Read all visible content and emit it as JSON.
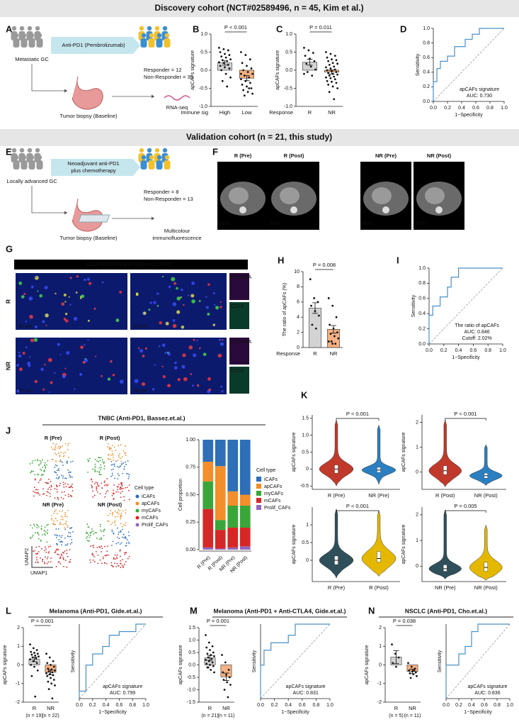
{
  "headers": [
    "Discovery cohort (NCT#02589496, n = 45, Kim et al.)",
    "Validation cohort (n = 21, this study)"
  ],
  "panels": [
    "A",
    "B",
    "C",
    "D",
    "E",
    "F",
    "G",
    "H",
    "I",
    "J",
    "K",
    "L",
    "M",
    "N"
  ],
  "schema_a": {
    "treatment": "Anti-PD1 (Pembrolizumab)",
    "patients": "Metastatic GC",
    "responder": "Responder = 12",
    "non_responder": "Non-Responder = 33",
    "biopsy": "Tumor biopsy (Baseline)",
    "assay": "RNA-seq"
  },
  "schema_e": {
    "treatment": [
      "Neoadjuvant anti-PD1",
      "plus chemotherapy"
    ],
    "patients": "Locally advanced GC",
    "responder": "Responder = 8",
    "non_responder": "Non-Responder = 13",
    "biopsy": "Tumor biopsy (Baseline)",
    "assay": [
      "Multicolour",
      "immunofluorescence"
    ]
  },
  "ct_images": {
    "labels": [
      "R (Pre)",
      "R (Post)",
      "NR (Pre)",
      "NR (Post)"
    ],
    "scale": "5cm"
  },
  "if_images": {
    "legend": [
      "apCAFs:",
      "PDGFRA",
      "CD74",
      "Nucleus:",
      "DAPI"
    ],
    "rows": [
      "R",
      "NR"
    ],
    "scale": "50 μm",
    "channels": [
      "PDGFRA",
      "CD74"
    ]
  },
  "tnbc": {
    "title": "TNBC (Anti-PD1,  Bassez.et.al.)",
    "umap_labels": [
      "R (Pre)",
      "R (Post)",
      "NR (Pre)",
      "NR (Post)"
    ],
    "umap_axes": [
      "UMAP2",
      "UMAP1"
    ]
  },
  "chart_data": [
    {
      "type": "bar",
      "ylabel": "apCAFs signature",
      "xlabel": "Immune sig",
      "categories": [
        "High",
        "Low"
      ],
      "values": [
        0.2,
        -0.22
      ],
      "errors": [
        0.06,
        0.07
      ],
      "colors": [
        "#d3d3d3",
        "#f4b183"
      ],
      "points": [
        [
          0.62,
          0.58,
          0.55,
          0.5,
          0.45,
          0.42,
          0.38,
          0.35,
          0.3,
          0.28,
          0.25,
          0.22,
          0.2,
          0.15,
          0.12,
          0.08,
          0.05,
          0.0,
          -0.1,
          -0.2,
          -0.3,
          -0.45
        ],
        [
          0.5,
          0.42,
          0.3,
          0.2,
          0.12,
          0.05,
          0.0,
          -0.05,
          -0.1,
          -0.15,
          -0.2,
          -0.25,
          -0.3,
          -0.35,
          -0.4,
          -0.45,
          -0.5,
          -0.55,
          -0.6,
          -0.65,
          -0.7,
          -0.5,
          -0.1
        ]
      ],
      "ylim": [
        -1,
        1
      ],
      "yticks": [
        {
          "value": -1,
          "label": "-1.0"
        },
        {
          "value": -0.5,
          "label": "-0.5"
        },
        {
          "value": 0,
          "label": "0.0"
        },
        {
          "value": 0.5,
          "label": "0.5"
        },
        {
          "value": 1,
          "label": "1.0"
        }
      ],
      "annotation": "P < 0.001"
    },
    {
      "type": "bar",
      "ylabel": "apCAFs signature",
      "xlabel": "Response",
      "categories": [
        "R",
        "NR"
      ],
      "values": [
        0.22,
        -0.05
      ],
      "errors": [
        0.08,
        0.06
      ],
      "colors": [
        "#d3d3d3",
        "#f4b183"
      ],
      "points": [
        [
          0.62,
          0.55,
          0.48,
          0.4,
          0.32,
          0.25,
          0.18,
          0.1,
          0.02,
          -0.05,
          -0.15,
          -0.1
        ],
        [
          0.5,
          0.45,
          0.4,
          0.35,
          0.3,
          0.28,
          0.25,
          0.2,
          0.18,
          0.15,
          0.1,
          0.08,
          0.05,
          0.02,
          0.0,
          -0.02,
          -0.05,
          -0.08,
          -0.1,
          -0.12,
          -0.15,
          -0.18,
          -0.2,
          -0.22,
          -0.25,
          -0.3,
          -0.32,
          -0.35,
          -0.4,
          -0.45,
          -0.5,
          -0.6,
          -0.8
        ]
      ],
      "ylim": [
        -1,
        1
      ],
      "yticks": [
        {
          "value": -1,
          "label": "-1.0"
        },
        {
          "value": -0.5,
          "label": "-0.5"
        },
        {
          "value": 0,
          "label": "0.0"
        },
        {
          "value": 0.5,
          "label": "0.5"
        },
        {
          "value": 1,
          "label": "1.0"
        }
      ],
      "annotation": "P = 0.011"
    },
    {
      "type": "roc",
      "xlabel": "1−Specificity",
      "ylabel": "Sensitivity",
      "color": "#4a90c8",
      "x": [
        0,
        0,
        0.05,
        0.05,
        0.1,
        0.1,
        0.2,
        0.2,
        0.3,
        0.3,
        0.45,
        0.45,
        0.55,
        0.55,
        0.65,
        0.65,
        1
      ],
      "y": [
        0,
        0.27,
        0.27,
        0.45,
        0.45,
        0.55,
        0.55,
        0.62,
        0.62,
        0.75,
        0.75,
        0.85,
        0.85,
        0.92,
        0.92,
        1,
        1
      ],
      "xlim": [
        0,
        1
      ],
      "ylim": [
        0,
        1
      ],
      "xticks": [
        {
          "value": 0,
          "label": "0.0"
        },
        0.2,
        0.4,
        0.6,
        0.8,
        {
          "value": 1,
          "label": "1.0"
        }
      ],
      "yticks": [
        {
          "value": 0,
          "label": "0.0"
        },
        0.2,
        0.4,
        0.6,
        0.8,
        {
          "value": 1,
          "label": "1.0"
        }
      ],
      "annotation": [
        "apCAFs signature",
        "AUC: 0.730"
      ]
    },
    {
      "type": "bar",
      "ylabel": "The ratio of apCAFs (%)",
      "xlabel": "Response",
      "categories": [
        "R",
        "NR"
      ],
      "values": [
        5.2,
        2.4
      ],
      "errors": [
        0.7,
        0.5
      ],
      "colors": [
        "#d3d3d3",
        "#f4b183"
      ],
      "points": [
        [
          9.0,
          6.5,
          6.0,
          5.5,
          4.8,
          4.2,
          3.0,
          2.5
        ],
        [
          6.5,
          5.5,
          4.0,
          3.0,
          2.5,
          2.0,
          1.8,
          1.5,
          1.2,
          0.8,
          0.5,
          0.8,
          0.5
        ]
      ],
      "ylim": [
        0,
        10
      ],
      "yticks": [
        0,
        2,
        4,
        6,
        8,
        10
      ],
      "annotation": "P = 0.008"
    },
    {
      "type": "roc",
      "xlabel": "1−Specificity",
      "ylabel": "Sensitivity",
      "color": "#4a90c8",
      "x": [
        0,
        0,
        0.05,
        0.05,
        0.15,
        0.15,
        0.25,
        0.25,
        0.3,
        0.3,
        0.4,
        0.4,
        1
      ],
      "y": [
        0,
        0.38,
        0.38,
        0.5,
        0.5,
        0.62,
        0.62,
        0.75,
        0.75,
        0.88,
        0.88,
        1,
        1
      ],
      "xlim": [
        0,
        1
      ],
      "ylim": [
        0,
        1
      ],
      "xticks": [
        {
          "value": 0,
          "label": "0.0"
        },
        0.2,
        0.4,
        0.6,
        0.8,
        {
          "value": 1,
          "label": "1.0"
        }
      ],
      "yticks": [
        {
          "value": 0,
          "label": "0.0"
        },
        0.2,
        0.4,
        0.6,
        0.8,
        {
          "value": 1,
          "label": "1.0"
        }
      ],
      "annotation": [
        "The ratio of apCAFs",
        "AUC: 0.846",
        "Cutoff: 2.02%"
      ]
    },
    {
      "type": "stacked_bar",
      "ylabel": "Cell proportion",
      "legend_title": "Cell type",
      "categories": [
        "R (Pre)",
        "R (Post)",
        "NR (Pre)",
        "NR (Post)"
      ],
      "series": [
        {
          "name": "iCAFs",
          "color": "#2e6fb7",
          "values": [
            0.2,
            0.24,
            0.47,
            0.5
          ]
        },
        {
          "name": "apCAFs",
          "color": "#f28e2b",
          "values": [
            0.18,
            0.49,
            0.13,
            0.1
          ]
        },
        {
          "name": "myCAFs",
          "color": "#3aa63a",
          "values": [
            0.25,
            0.09,
            0.2,
            0.2
          ]
        },
        {
          "name": "mCAFs",
          "color": "#d62728",
          "values": [
            0.35,
            0.17,
            0.18,
            0.17
          ]
        },
        {
          "name": "Prolif_CAFs",
          "color": "#9467bd",
          "values": [
            0.02,
            0.01,
            0.02,
            0.03
          ]
        }
      ],
      "ylim": [
        0,
        1
      ],
      "yticks": [
        {
          "value": 0,
          "label": "0.00"
        },
        {
          "value": 0.25,
          "label": "0.25"
        },
        {
          "value": 0.5,
          "label": "0.50"
        },
        {
          "value": 0.75,
          "label": "0.75"
        },
        {
          "value": 1,
          "label": "1.00"
        }
      ]
    },
    {
      "type": "violin",
      "ylabel": "apCAFs signature",
      "groups": [
        {
          "name": "R (Pre)",
          "color": "#c0392b",
          "min": -0.5,
          "q1": -0.12,
          "median": 0.0,
          "q3": 0.12,
          "max": 1.45
        },
        {
          "name": "NR (Pre)",
          "color": "#2a7fc1",
          "min": -0.45,
          "q1": -0.1,
          "median": -0.03,
          "q3": 0.05,
          "max": 1.3
        }
      ],
      "ylim": [
        -0.6,
        1.6
      ],
      "yticks": [
        {
          "value": -0.5,
          "label": "-0.5"
        },
        0,
        0.5,
        {
          "value": 1,
          "label": "1.0"
        },
        {
          "value": 1.5,
          "label": "1.5"
        }
      ],
      "annotation": "P < 0.001"
    },
    {
      "type": "violin",
      "ylabel": "apCAFs signature",
      "groups": [
        {
          "name": "R (Post)",
          "color": "#c0392b",
          "min": -0.6,
          "q1": -0.1,
          "median": 0.05,
          "q3": 0.25,
          "max": 2.1
        },
        {
          "name": "NR (Post)",
          "color": "#2a7fc1",
          "min": -0.55,
          "q1": -0.25,
          "median": -0.15,
          "q3": -0.05,
          "max": 1.1
        }
      ],
      "ylim": [
        -0.7,
        2.3
      ],
      "yticks": [
        0,
        1,
        2
      ],
      "annotation": "P < 0.001"
    },
    {
      "type": "violin",
      "ylabel": "apCAFs signature",
      "groups": [
        {
          "name": "R (Pre)",
          "color": "#2f4f5a",
          "min": -0.5,
          "q1": -0.12,
          "median": 0.0,
          "q3": 0.12,
          "max": 1.45
        },
        {
          "name": "R (Post)",
          "color": "#e5b800",
          "min": -0.45,
          "q1": -0.05,
          "median": 0.05,
          "q3": 0.25,
          "max": 1.4
        }
      ],
      "ylim": [
        -0.6,
        1.5
      ],
      "yticks": [
        0,
        0.5,
        1
      ],
      "annotation": "P < 0.001"
    },
    {
      "type": "violin",
      "ylabel": "apCAFs signature",
      "groups": [
        {
          "name": "NR (Pre)",
          "color": "#2f4f5a",
          "min": -0.5,
          "q1": -0.2,
          "median": -0.1,
          "q3": 0.05,
          "max": 2.2
        },
        {
          "name": "NR (Post)",
          "color": "#e5b800",
          "min": -0.55,
          "q1": -0.2,
          "median": -0.05,
          "q3": 0.15,
          "max": 1.6
        }
      ],
      "ylim": [
        -0.6,
        2.3
      ],
      "yticks": [
        0,
        1,
        2
      ],
      "annotation": "P = 0.005"
    },
    {
      "type": "bar",
      "title": "Melanoma (Anti-PD1, Gide.et.al.)",
      "ylabel": "apCAFs signature",
      "categories": [
        "R",
        "NR"
      ],
      "category_notes": [
        "(n = 19)",
        "(n = 22)"
      ],
      "values": [
        0.3,
        -0.4
      ],
      "errors": [
        0.12,
        0.13
      ],
      "colors": [
        "#d3d3d3",
        "#f4b183"
      ],
      "points": [
        [
          1.1,
          0.9,
          0.8,
          0.7,
          0.65,
          0.6,
          0.55,
          0.5,
          0.45,
          0.4,
          0.35,
          0.3,
          0.2,
          0.1,
          0.0,
          -0.1,
          -0.3,
          -0.6,
          -1.7
        ],
        [
          0.6,
          0.4,
          0.2,
          0.1,
          0.0,
          -0.1,
          -0.2,
          -0.25,
          -0.3,
          -0.35,
          -0.4,
          -0.45,
          -0.5,
          -0.55,
          -0.6,
          -0.7,
          -0.8,
          -0.9,
          -1.0,
          -1.1,
          -1.3,
          -1.8
        ]
      ],
      "ylim": [
        -2,
        2
      ],
      "yticks": [
        -2,
        -1,
        0,
        1,
        2
      ],
      "annotation": "P = 0.001"
    },
    {
      "type": "roc",
      "xlabel": "1−Specificity",
      "ylabel": "Sensitivity",
      "color": "#4a90c8",
      "x": [
        0,
        0,
        0.1,
        0.1,
        0.2,
        0.2,
        0.35,
        0.35,
        0.45,
        0.45,
        0.6,
        0.6,
        0.85,
        0.85,
        1
      ],
      "y": [
        0,
        0.1,
        0.1,
        0.45,
        0.45,
        0.6,
        0.6,
        0.7,
        0.7,
        0.85,
        0.85,
        0.9,
        0.9,
        1,
        1
      ],
      "xlim": [
        0,
        1
      ],
      "ylim": [
        0,
        1
      ],
      "xticks": [
        {
          "value": 0,
          "label": "0.0"
        },
        0.2,
        0.4,
        0.6,
        0.8,
        {
          "value": 1,
          "label": "1.0"
        }
      ],
      "annotation": [
        "apCAFs signature",
        "AUC: 0.799"
      ]
    },
    {
      "type": "bar",
      "title": "Melanoma (Anti-PD1 + Anti-CTLA4, Gide.et.al.)",
      "ylabel": "apCAFs signature",
      "categories": [
        "R",
        "NR"
      ],
      "category_notes": [
        "(n = 21)",
        "(n = 11)"
      ],
      "values": [
        0.28,
        -0.48
      ],
      "errors": [
        0.1,
        0.15
      ],
      "colors": [
        "#d3d3d3",
        "#f4b183"
      ],
      "points": [
        [
          1.2,
          0.9,
          0.75,
          0.7,
          0.6,
          0.5,
          0.45,
          0.4,
          0.35,
          0.3,
          0.25,
          0.2,
          0.15,
          0.1,
          0.05,
          0.0,
          -0.05,
          -0.1,
          -0.2,
          -0.3,
          -0.1
        ],
        [
          0.4,
          0.1,
          -0.2,
          -0.3,
          -0.4,
          -0.5,
          -0.6,
          -0.7,
          -0.8,
          -1.0,
          -1.3
        ]
      ],
      "ylim": [
        -1.5,
        1.5
      ],
      "yticks": [
        {
          "value": -1.5,
          "label": "-1.5"
        },
        {
          "value": -1,
          "label": "-1.0"
        },
        {
          "value": -0.5,
          "label": "-0.5"
        },
        {
          "value": 0,
          "label": "0.0"
        },
        {
          "value": 0.5,
          "label": "0.5"
        },
        {
          "value": 1,
          "label": "1.0"
        },
        {
          "value": 1.5,
          "label": "1.5"
        }
      ],
      "annotation": "P = 0.001"
    },
    {
      "type": "roc",
      "xlabel": "1−Specificity",
      "ylabel": "Sensitivity",
      "color": "#4a90c8",
      "x": [
        0,
        0,
        0.05,
        0.05,
        0.15,
        0.15,
        0.4,
        0.4,
        0.5,
        0.5,
        1
      ],
      "y": [
        0,
        0.45,
        0.45,
        0.65,
        0.65,
        0.75,
        0.75,
        0.85,
        0.85,
        1,
        1
      ],
      "xlim": [
        0,
        1
      ],
      "ylim": [
        0,
        1
      ],
      "xticks": [
        {
          "value": 0,
          "label": "0.0"
        },
        0.2,
        0.4,
        0.6,
        0.8,
        {
          "value": 1,
          "label": "1.0"
        }
      ],
      "annotation": [
        "apCAFs signature",
        "AUC: 0.831"
      ]
    },
    {
      "type": "bar",
      "title": "NSCLC (Anti-PD1, Cho.et.al.)",
      "ylabel": "apCAFs signature",
      "categories": [
        "R",
        "NR"
      ],
      "category_notes": [
        "(n = 5)",
        "(n = 11)"
      ],
      "values": [
        0.42,
        -0.35
      ],
      "errors": [
        0.35,
        0.12
      ],
      "colors": [
        "#d3d3d3",
        "#f4b183"
      ],
      "points": [
        [
          1.1,
          0.6,
          0.4,
          0.1,
          -0.1
        ],
        [
          0.1,
          -0.1,
          -0.2,
          -0.3,
          -0.35,
          -0.4,
          -0.45,
          -0.5,
          -0.6,
          -0.7,
          -0.3
        ]
      ],
      "ylim": [
        -2,
        2
      ],
      "yticks": [
        -2,
        -1,
        0,
        1,
        2
      ],
      "annotation": "P = 0.038"
    },
    {
      "type": "roc",
      "xlabel": "1−Specificity",
      "ylabel": "Sensitivity",
      "color": "#4a90c8",
      "x": [
        0,
        0,
        0.2,
        0.2,
        0.3,
        0.3,
        0.4,
        0.4,
        0.5,
        0.5,
        1
      ],
      "y": [
        0,
        0.45,
        0.45,
        0.6,
        0.6,
        0.7,
        0.7,
        0.9,
        0.9,
        1,
        1
      ],
      "xlim": [
        0,
        1
      ],
      "ylim": [
        0,
        1
      ],
      "xticks": [
        {
          "value": 0,
          "label": "0.0"
        },
        0.2,
        0.4,
        0.6,
        0.8,
        {
          "value": 1,
          "label": "1.0"
        }
      ],
      "annotation": [
        "apCAFs signature",
        "AUC: 0.836"
      ]
    }
  ]
}
